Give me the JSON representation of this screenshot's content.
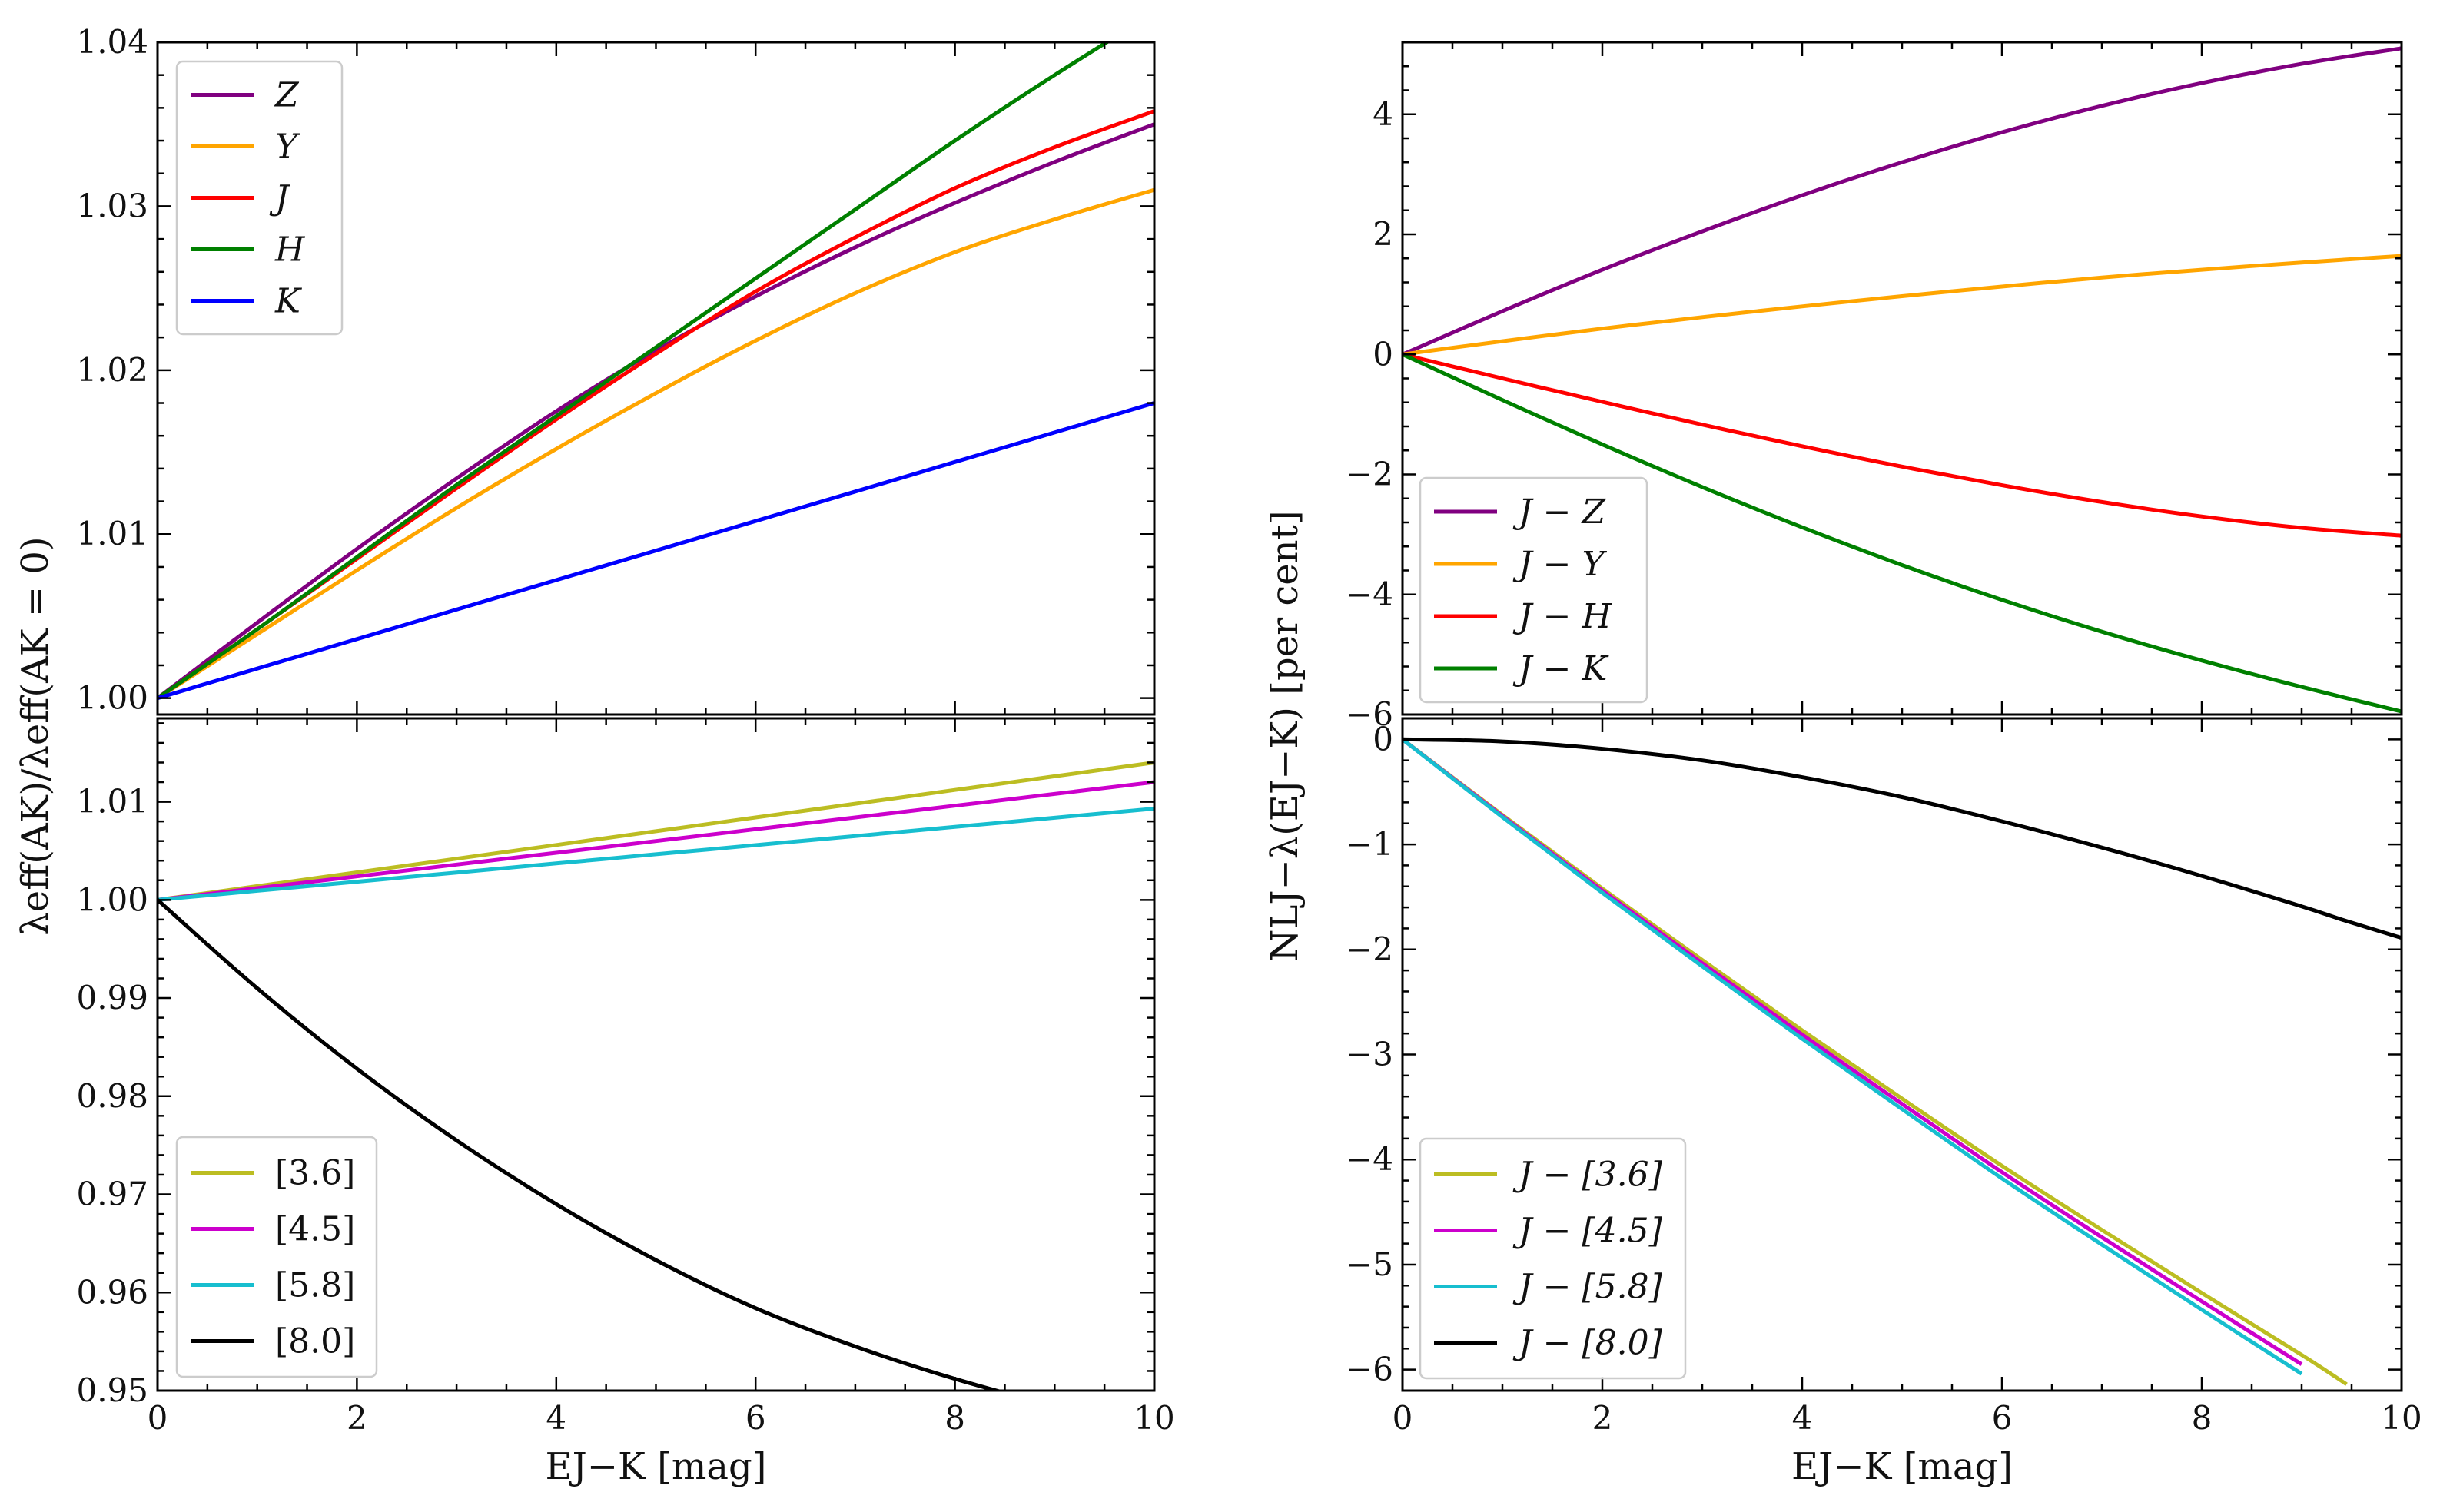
{
  "figure": {
    "left_ylabel": "λeff(AK)/λeff(AK = 0)",
    "right_ylabel": "NLJ−λ(EJ−K) [per cent]"
  },
  "chart_data": [
    {
      "id": "top-left",
      "type": "line",
      "xlabel": "",
      "ylabel": "",
      "xlim": [
        0,
        10
      ],
      "ylim": [
        0.999,
        1.04
      ],
      "x_ticks": [
        0,
        2,
        4,
        6,
        8,
        10
      ],
      "x_tick_labels": [
        "",
        "",
        "",
        "",
        "",
        ""
      ],
      "y_ticks": [
        1.0,
        1.01,
        1.02,
        1.03,
        1.04
      ],
      "y_tick_labels": [
        "1.00",
        "1.01",
        "1.02",
        "1.03",
        "1.04"
      ],
      "legend_position": "upper-left",
      "grid": false,
      "x": [
        0,
        1,
        2,
        3,
        4,
        5,
        6,
        7,
        8,
        9,
        10
      ],
      "series": [
        {
          "name": "Z",
          "color": "#800080",
          "values": [
            1.0,
            1.0046,
            1.0091,
            1.0134,
            1.0175,
            1.0212,
            1.0245,
            1.0275,
            1.0302,
            1.0327,
            1.035
          ]
        },
        {
          "name": "Y",
          "color": "#FFA500",
          "values": [
            1.0,
            1.0039,
            1.0078,
            1.0116,
            1.0152,
            1.0186,
            1.0218,
            1.0247,
            1.0272,
            1.0292,
            1.031
          ]
        },
        {
          "name": "J",
          "color": "#FF0000",
          "values": [
            1.0,
            1.0042,
            1.0085,
            1.0128,
            1.017,
            1.021,
            1.0248,
            1.0281,
            1.0311,
            1.0336,
            1.0358
          ]
        },
        {
          "name": "H",
          "color": "#008000",
          "values": [
            1.0,
            1.0042,
            1.0086,
            1.013,
            1.0172,
            1.0214,
            1.0256,
            1.0298,
            1.034,
            1.038,
            1.0418
          ]
        },
        {
          "name": "K",
          "color": "#0000FF",
          "values": [
            1.0,
            1.0018,
            1.0036,
            1.0054,
            1.0072,
            1.009,
            1.0108,
            1.0126,
            1.0144,
            1.0162,
            1.018
          ]
        }
      ]
    },
    {
      "id": "bottom-left",
      "type": "line",
      "xlabel": "EJ−K [mag]",
      "ylabel": "",
      "xlim": [
        0,
        10
      ],
      "ylim": [
        0.95,
        1.0185
      ],
      "x_ticks": [
        0,
        2,
        4,
        6,
        8,
        10
      ],
      "x_tick_labels": [
        "0",
        "2",
        "4",
        "6",
        "8",
        "10"
      ],
      "y_ticks": [
        0.95,
        0.96,
        0.97,
        0.98,
        0.99,
        1.0,
        1.01
      ],
      "y_tick_labels": [
        "0.95",
        "0.96",
        "0.97",
        "0.98",
        "0.99",
        "1.00",
        "1.01"
      ],
      "legend_position": "lower-left",
      "grid": false,
      "x": [
        0,
        1,
        2,
        3,
        4,
        5,
        6,
        7,
        8,
        9,
        10
      ],
      "series": [
        {
          "name": "[3.6]",
          "color": "#BCBD22",
          "values": [
            1.0,
            1.0014,
            1.0028,
            1.0042,
            1.0056,
            1.007,
            1.0084,
            1.0098,
            1.0112,
            1.0126,
            1.014
          ]
        },
        {
          "name": "[4.5]",
          "color": "#CC00CC",
          "values": [
            1.0,
            1.0012,
            1.0024,
            1.0036,
            1.0048,
            1.006,
            1.0072,
            1.0084,
            1.0096,
            1.0108,
            1.012
          ]
        },
        {
          "name": "[5.8]",
          "color": "#17BECF",
          "values": [
            1.0,
            1.00093,
            1.00186,
            1.00279,
            1.00372,
            1.00465,
            1.00558,
            1.00651,
            1.00744,
            1.00837,
            1.0093
          ]
        },
        {
          "name": "[8.0]",
          "color": "#000000",
          "values": [
            1.0,
            0.991,
            0.9828,
            0.9755,
            0.969,
            0.9633,
            0.9584,
            0.9545,
            0.9512,
            0.9485,
            0.9465
          ]
        }
      ]
    },
    {
      "id": "top-right",
      "type": "line",
      "xlabel": "",
      "ylabel": "",
      "xlim": [
        0,
        10
      ],
      "ylim": [
        -6,
        5.2
      ],
      "x_ticks": [
        0,
        2,
        4,
        6,
        8,
        10
      ],
      "x_tick_labels": [
        "",
        "",
        "",
        "",
        "",
        ""
      ],
      "y_ticks": [
        -6,
        -4,
        -2,
        0,
        2,
        4
      ],
      "y_tick_labels": [
        "−6",
        "−4",
        "−2",
        "0",
        "2",
        "4"
      ],
      "legend_position": "lower-left",
      "grid": false,
      "x": [
        0,
        1,
        2,
        3,
        4,
        5,
        6,
        7,
        8,
        9,
        10
      ],
      "series": [
        {
          "name": "J − Z",
          "color": "#800080",
          "values": [
            0,
            0.72,
            1.41,
            2.05,
            2.65,
            3.2,
            3.7,
            4.14,
            4.52,
            4.84,
            5.1
          ]
        },
        {
          "name": "J − Y",
          "color": "#FFA500",
          "values": [
            0,
            0.22,
            0.43,
            0.62,
            0.8,
            0.97,
            1.13,
            1.28,
            1.41,
            1.53,
            1.64
          ]
        },
        {
          "name": "J − H",
          "color": "#FF0000",
          "values": [
            0,
            -0.4,
            -0.79,
            -1.17,
            -1.53,
            -1.87,
            -2.18,
            -2.46,
            -2.7,
            -2.89,
            -3.02
          ]
        },
        {
          "name": "J − K",
          "color": "#008000",
          "values": [
            0,
            -0.76,
            -1.5,
            -2.21,
            -2.88,
            -3.51,
            -4.09,
            -4.62,
            -5.1,
            -5.54,
            -5.95
          ]
        }
      ]
    },
    {
      "id": "bottom-right",
      "type": "line",
      "xlabel": "EJ−K [mag]",
      "ylabel": "",
      "xlim": [
        0,
        10
      ],
      "ylim": [
        -6.2,
        0.2
      ],
      "x_ticks": [
        0,
        2,
        4,
        6,
        8,
        10
      ],
      "x_tick_labels": [
        "0",
        "2",
        "4",
        "6",
        "8",
        "10"
      ],
      "y_ticks": [
        -6,
        -5,
        -4,
        -3,
        -2,
        -1,
        0
      ],
      "y_tick_labels": [
        "−6",
        "−5",
        "−4",
        "−3",
        "−2",
        "−1",
        "0"
      ],
      "legend_position": "lower-left",
      "grid": false,
      "x": [
        0,
        1,
        2,
        3,
        4,
        5,
        6,
        7,
        8,
        9,
        9.45,
        10
      ],
      "series": [
        {
          "name": "J − [3.6]",
          "color": "#BCBD22",
          "values": [
            0,
            -0.72,
            -1.42,
            -2.1,
            -2.77,
            -3.42,
            -4.06,
            -4.67,
            -5.27,
            -5.86,
            -6.14,
            null
          ]
        },
        {
          "name": "J − [4.5]",
          "color": "#CC00CC",
          "values": [
            0,
            -0.73,
            -1.44,
            -2.13,
            -2.81,
            -3.47,
            -4.12,
            -4.74,
            -5.35,
            -5.95,
            null,
            null
          ]
        },
        {
          "name": "J − [5.8]",
          "color": "#17BECF",
          "values": [
            0,
            -0.74,
            -1.46,
            -2.16,
            -2.85,
            -3.52,
            -4.18,
            -4.81,
            -5.43,
            -6.04,
            null,
            null
          ]
        },
        {
          "name": "J − [8.0]",
          "color": "#000000",
          "values": [
            0,
            -0.02,
            -0.09,
            -0.2,
            -0.36,
            -0.55,
            -0.78,
            -1.03,
            -1.3,
            -1.59,
            -1.73,
            -1.89
          ]
        }
      ]
    }
  ]
}
